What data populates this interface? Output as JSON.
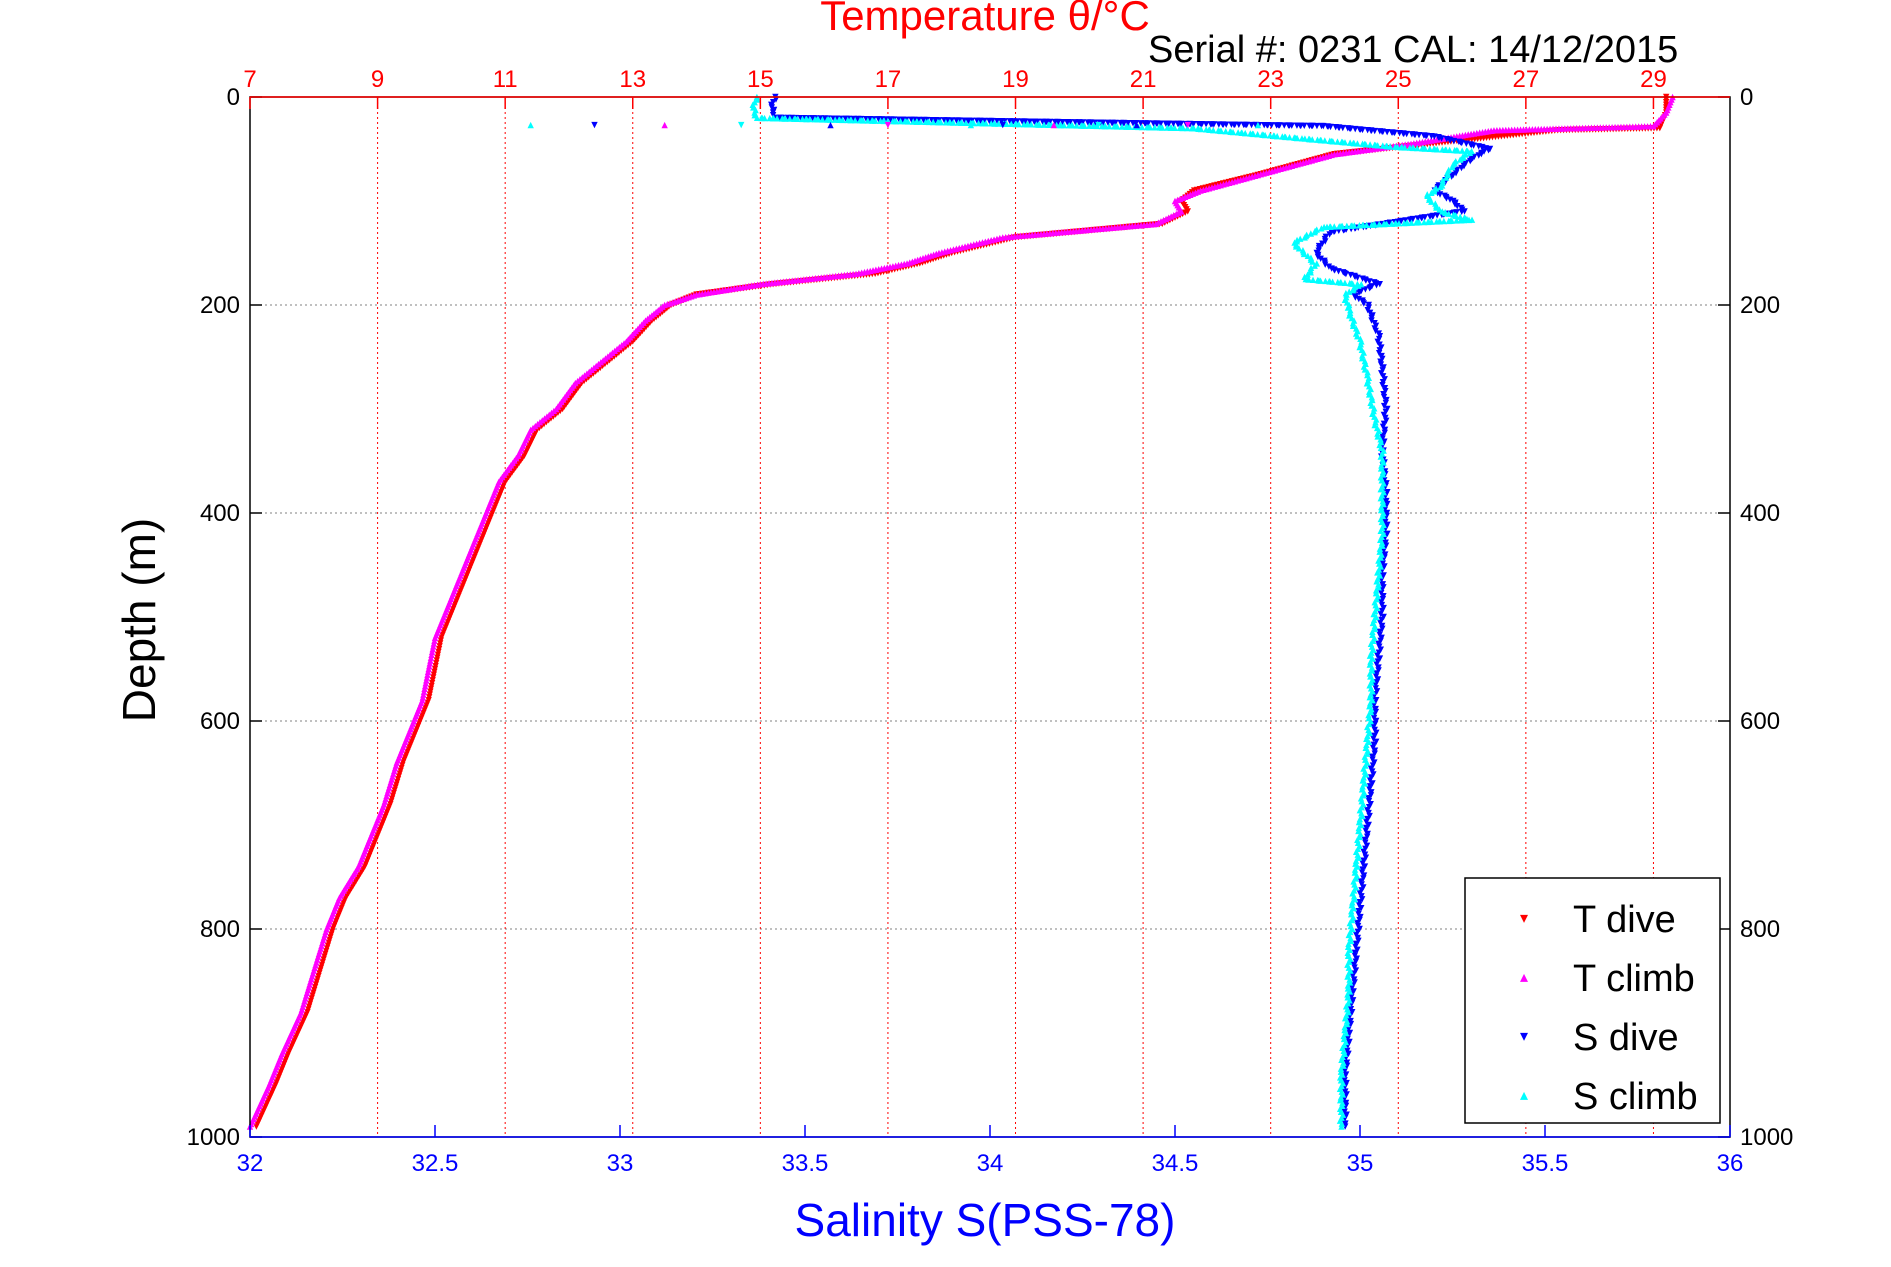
{
  "chart_data": {
    "type": "scatter",
    "title": "Temperature θ/°C",
    "subtitle": "Serial #: 0231  CAL: 14/12/2015",
    "xlabel_bottom": "Salinity S(PSS-78)",
    "xlabel_top": "Temperature θ/°C",
    "ylabel": "Depth (m)",
    "y_reversed": true,
    "ylim": [
      0,
      1000
    ],
    "xlim_bottom": [
      32,
      36
    ],
    "xlim_top": [
      7,
      30.2
    ],
    "y_ticks": [
      "0",
      "200",
      "400",
      "600",
      "800",
      "1000"
    ],
    "y_tick_values": [
      0,
      200,
      400,
      600,
      800,
      1000
    ],
    "x_ticks_bottom": [
      "32",
      "32.5",
      "33",
      "33.5",
      "34",
      "34.5",
      "35",
      "35.5",
      "36"
    ],
    "x_tick_values_bottom": [
      32,
      32.5,
      33,
      33.5,
      34,
      34.5,
      35,
      35.5,
      36
    ],
    "x_ticks_top": [
      "7",
      "9",
      "11",
      "13",
      "15",
      "17",
      "19",
      "21",
      "23",
      "25",
      "27",
      "29"
    ],
    "x_tick_values_top": [
      7,
      9,
      11,
      13,
      15,
      17,
      19,
      21,
      23,
      25,
      27,
      29
    ],
    "grid": true,
    "legend_position": "bottom-right",
    "colors": {
      "temperature_axis": "#ff0000",
      "salinity_axis": "#0000ff",
      "t_dive": "#ff0000",
      "t_climb": "#ff00ff",
      "s_dive": "#0000ff",
      "s_climb": "#00ffff",
      "grid_y": "#808080",
      "grid_x": "#ff0000",
      "axes": "#000000"
    },
    "series": [
      {
        "name": "T dive",
        "axis": "top",
        "marker": "triangle-down",
        "points": [
          [
            29.2,
            0
          ],
          [
            29.2,
            15
          ],
          [
            29.1,
            30
          ],
          [
            27.5,
            32
          ],
          [
            25.5,
            45
          ],
          [
            24.0,
            55
          ],
          [
            22.8,
            75
          ],
          [
            21.8,
            90
          ],
          [
            21.6,
            100
          ],
          [
            21.7,
            110
          ],
          [
            21.3,
            122
          ],
          [
            19.0,
            135
          ],
          [
            18.0,
            150
          ],
          [
            17.5,
            160
          ],
          [
            16.8,
            170
          ],
          [
            15.2,
            180
          ],
          [
            14.0,
            190
          ],
          [
            13.6,
            200
          ],
          [
            13.3,
            215
          ],
          [
            13.0,
            235
          ],
          [
            12.6,
            255
          ],
          [
            12.2,
            275
          ],
          [
            11.9,
            300
          ],
          [
            11.5,
            320
          ],
          [
            11.3,
            345
          ],
          [
            11.0,
            370
          ],
          [
            10.8,
            400
          ],
          [
            10.6,
            430
          ],
          [
            10.4,
            460
          ],
          [
            10.2,
            490
          ],
          [
            10.0,
            520
          ],
          [
            9.9,
            550
          ],
          [
            9.8,
            580
          ],
          [
            9.6,
            610
          ],
          [
            9.4,
            640
          ],
          [
            9.2,
            680
          ],
          [
            9.0,
            710
          ],
          [
            8.8,
            740
          ],
          [
            8.5,
            770
          ],
          [
            8.3,
            800
          ],
          [
            8.1,
            840
          ],
          [
            7.9,
            880
          ],
          [
            7.6,
            920
          ],
          [
            7.4,
            950
          ],
          [
            7.1,
            990
          ]
        ]
      },
      {
        "name": "T climb",
        "axis": "top",
        "marker": "triangle-up",
        "points": [
          [
            29.3,
            0
          ],
          [
            29.2,
            15
          ],
          [
            29.0,
            28
          ],
          [
            26.5,
            32
          ],
          [
            25.2,
            45
          ],
          [
            24.0,
            55
          ],
          [
            22.8,
            75
          ],
          [
            21.9,
            90
          ],
          [
            21.5,
            100
          ],
          [
            21.6,
            110
          ],
          [
            21.2,
            122
          ],
          [
            18.8,
            135
          ],
          [
            17.8,
            150
          ],
          [
            17.3,
            160
          ],
          [
            16.5,
            170
          ],
          [
            15.0,
            180
          ],
          [
            14.0,
            190
          ],
          [
            13.5,
            200
          ],
          [
            13.2,
            215
          ],
          [
            12.9,
            235
          ],
          [
            12.5,
            255
          ],
          [
            12.1,
            275
          ],
          [
            11.8,
            300
          ],
          [
            11.4,
            320
          ],
          [
            11.2,
            345
          ],
          [
            10.9,
            370
          ],
          [
            10.7,
            400
          ],
          [
            10.5,
            430
          ],
          [
            10.3,
            460
          ],
          [
            10.1,
            490
          ],
          [
            9.9,
            520
          ],
          [
            9.8,
            550
          ],
          [
            9.7,
            580
          ],
          [
            9.5,
            610
          ],
          [
            9.3,
            640
          ],
          [
            9.1,
            680
          ],
          [
            8.9,
            710
          ],
          [
            8.7,
            740
          ],
          [
            8.4,
            770
          ],
          [
            8.2,
            800
          ],
          [
            8.0,
            840
          ],
          [
            7.8,
            880
          ],
          [
            7.5,
            920
          ],
          [
            7.3,
            950
          ],
          [
            7.0,
            990
          ]
        ]
      },
      {
        "name": "S dive",
        "axis": "bottom",
        "marker": "triangle-down",
        "points": [
          [
            33.42,
            0
          ],
          [
            33.41,
            10
          ],
          [
            33.42,
            20
          ],
          [
            34.9,
            28
          ],
          [
            35.2,
            38
          ],
          [
            35.35,
            50
          ],
          [
            35.3,
            60
          ],
          [
            35.25,
            75
          ],
          [
            35.2,
            90
          ],
          [
            35.25,
            100
          ],
          [
            35.28,
            110
          ],
          [
            35.1,
            120
          ],
          [
            34.92,
            130
          ],
          [
            34.88,
            150
          ],
          [
            34.92,
            165
          ],
          [
            35.05,
            180
          ],
          [
            34.98,
            190
          ],
          [
            35.02,
            200
          ],
          [
            35.05,
            230
          ],
          [
            35.06,
            260
          ],
          [
            35.07,
            300
          ],
          [
            35.06,
            340
          ],
          [
            35.07,
            380
          ],
          [
            35.07,
            420
          ],
          [
            35.06,
            460
          ],
          [
            35.06,
            500
          ],
          [
            35.05,
            540
          ],
          [
            35.04,
            580
          ],
          [
            35.04,
            620
          ],
          [
            35.03,
            660
          ],
          [
            35.02,
            700
          ],
          [
            35.01,
            740
          ],
          [
            35.0,
            780
          ],
          [
            34.99,
            820
          ],
          [
            34.98,
            860
          ],
          [
            34.97,
            900
          ],
          [
            34.96,
            940
          ],
          [
            34.96,
            970
          ],
          [
            34.96,
            990
          ]
        ]
      },
      {
        "name": "S climb",
        "axis": "bottom",
        "marker": "triangle-up",
        "points": [
          [
            33.37,
            0
          ],
          [
            33.36,
            10
          ],
          [
            33.37,
            20
          ],
          [
            34.55,
            30
          ],
          [
            34.85,
            40
          ],
          [
            35.1,
            48
          ],
          [
            35.3,
            52
          ],
          [
            35.25,
            65
          ],
          [
            35.22,
            85
          ],
          [
            35.18,
            95
          ],
          [
            35.22,
            110
          ],
          [
            35.3,
            118
          ],
          [
            34.9,
            125
          ],
          [
            34.82,
            140
          ],
          [
            34.88,
            160
          ],
          [
            34.85,
            175
          ],
          [
            35.0,
            180
          ],
          [
            34.96,
            190
          ],
          [
            34.97,
            205
          ],
          [
            35.0,
            235
          ],
          [
            35.02,
            270
          ],
          [
            35.04,
            310
          ],
          [
            35.06,
            340
          ],
          [
            35.06,
            380
          ],
          [
            35.06,
            420
          ],
          [
            35.05,
            460
          ],
          [
            35.04,
            500
          ],
          [
            35.03,
            540
          ],
          [
            35.03,
            580
          ],
          [
            35.02,
            620
          ],
          [
            35.01,
            660
          ],
          [
            35.0,
            700
          ],
          [
            34.99,
            740
          ],
          [
            34.98,
            780
          ],
          [
            34.97,
            820
          ],
          [
            34.97,
            860
          ],
          [
            34.96,
            900
          ],
          [
            34.95,
            940
          ],
          [
            34.95,
            970
          ],
          [
            34.95,
            990
          ]
        ]
      }
    ],
    "scatter_streak": {
      "axis": "top",
      "depth": 27,
      "t_values": [
        11.4,
        12.4,
        13.5,
        14.7,
        16.1,
        17.0,
        18.3,
        18.8,
        19.6,
        20.3,
        20.9,
        21.7,
        22.8
      ],
      "colors": [
        "#00ffff",
        "#0000ff",
        "#ff00ff"
      ]
    }
  },
  "legend": {
    "items": [
      {
        "label": "T dive",
        "color": "#ff0000",
        "marker": "▾"
      },
      {
        "label": "T climb",
        "color": "#ff00ff",
        "marker": "▴"
      },
      {
        "label": "S dive",
        "color": "#0000ff",
        "marker": "▾"
      },
      {
        "label": "S climb",
        "color": "#00ffff",
        "marker": "▴"
      }
    ]
  }
}
